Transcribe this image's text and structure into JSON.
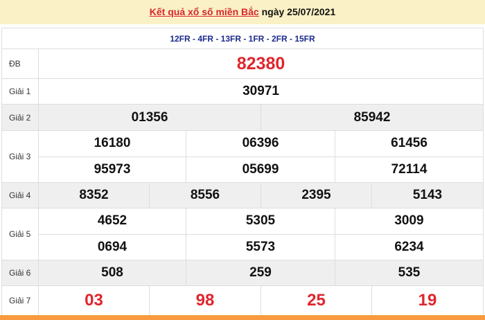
{
  "header": {
    "title_link": "Kết quả xổ số miền Bắc",
    "date_text": " ngày 25/07/2021"
  },
  "codes": "12FR - 4FR - 13FR - 1FR - 2FR - 15FR",
  "prizes": [
    {
      "label": "ĐB",
      "rows": [
        [
          "82380"
        ]
      ]
    },
    {
      "label": "Giải 1",
      "rows": [
        [
          "30971"
        ]
      ]
    },
    {
      "label": "Giải 2",
      "rows": [
        [
          "01356",
          "85942"
        ]
      ]
    },
    {
      "label": "Giải 3",
      "rows": [
        [
          "16180",
          "06396",
          "61456"
        ],
        [
          "95973",
          "05699",
          "72114"
        ]
      ]
    },
    {
      "label": "Giải 4",
      "rows": [
        [
          "8352",
          "8556",
          "2395",
          "5143"
        ]
      ]
    },
    {
      "label": "Giải 5",
      "rows": [
        [
          "4652",
          "5305",
          "3009"
        ],
        [
          "0694",
          "5573",
          "6234"
        ]
      ]
    },
    {
      "label": "Giải 6",
      "rows": [
        [
          "508",
          "259",
          "535"
        ]
      ]
    },
    {
      "label": "Giải 7",
      "rows": [
        [
          "03",
          "98",
          "25",
          "19"
        ]
      ]
    }
  ],
  "colors": {
    "accent_red": "#e0252c",
    "codes_blue": "#1c2a8c",
    "header_bg": "#fbf1c6",
    "footer_bar": "#f99a3e"
  }
}
